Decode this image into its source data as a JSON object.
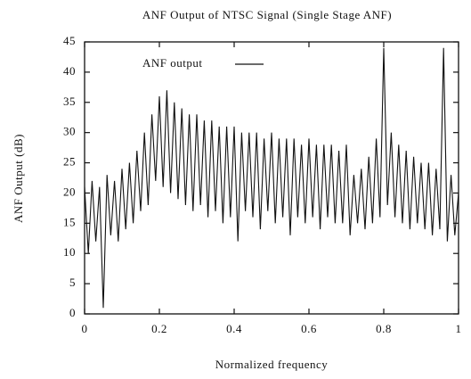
{
  "chart_data": {
    "type": "line",
    "title": "ANF Output of NTSC Signal (Single Stage ANF)",
    "x_label": "Normalized frequency",
    "y_label": "ANF Output (dB)",
    "xlim": [
      0,
      1
    ],
    "xticks": [
      0,
      0.2,
      0.4,
      0.6,
      0.8,
      1
    ],
    "ylim": [
      0,
      45
    ],
    "yticks": [
      0,
      5,
      10,
      15,
      20,
      25,
      30,
      35,
      40,
      45
    ],
    "legend": "upper left",
    "x": [
      0,
      0.01,
      0.02,
      0.03,
      0.04,
      0.05,
      0.06,
      0.07,
      0.08,
      0.09,
      0.1,
      0.11,
      0.12,
      0.13,
      0.14,
      0.15,
      0.16,
      0.17,
      0.18,
      0.19,
      0.2,
      0.21,
      0.22,
      0.23,
      0.24,
      0.25,
      0.26,
      0.27,
      0.28,
      0.29,
      0.3,
      0.31,
      0.32,
      0.33,
      0.34,
      0.35,
      0.36,
      0.37,
      0.38,
      0.39,
      0.4,
      0.41,
      0.42,
      0.43,
      0.44,
      0.45,
      0.46,
      0.47,
      0.48,
      0.49,
      0.5,
      0.51,
      0.52,
      0.53,
      0.54,
      0.55,
      0.56,
      0.57,
      0.58,
      0.59,
      0.6,
      0.61,
      0.62,
      0.63,
      0.64,
      0.65,
      0.66,
      0.67,
      0.68,
      0.69,
      0.7,
      0.71,
      0.72,
      0.73,
      0.74,
      0.75,
      0.76,
      0.77,
      0.78,
      0.79,
      0.8,
      0.81,
      0.82,
      0.83,
      0.84,
      0.85,
      0.86,
      0.87,
      0.88,
      0.89,
      0.9,
      0.91,
      0.92,
      0.93,
      0.94,
      0.95,
      0.96,
      0.97,
      0.98,
      0.99,
      1
    ],
    "series": [
      {
        "name": "ANF output",
        "color": "#111111",
        "values": [
          21,
          10,
          22,
          12,
          21,
          1,
          23,
          13,
          22,
          12,
          24,
          14,
          25,
          15,
          27,
          17,
          30,
          18,
          33,
          22,
          36,
          21,
          37,
          20,
          35,
          19,
          34,
          18,
          33,
          17,
          33,
          18,
          32,
          16,
          32,
          17,
          31,
          15,
          31,
          16,
          31,
          12,
          30,
          17,
          30,
          16,
          30,
          14,
          29,
          17,
          30,
          15,
          29,
          16,
          29,
          13,
          29,
          16,
          28,
          15,
          29,
          16,
          28,
          14,
          28,
          16,
          28,
          15,
          27,
          15,
          28,
          13,
          23,
          15,
          24,
          14,
          26,
          15,
          29,
          16,
          44,
          18,
          30,
          16,
          28,
          15,
          27,
          14,
          26,
          15,
          25,
          14,
          25,
          13,
          24,
          14,
          44,
          12,
          23,
          13,
          20
        ]
      }
    ]
  }
}
